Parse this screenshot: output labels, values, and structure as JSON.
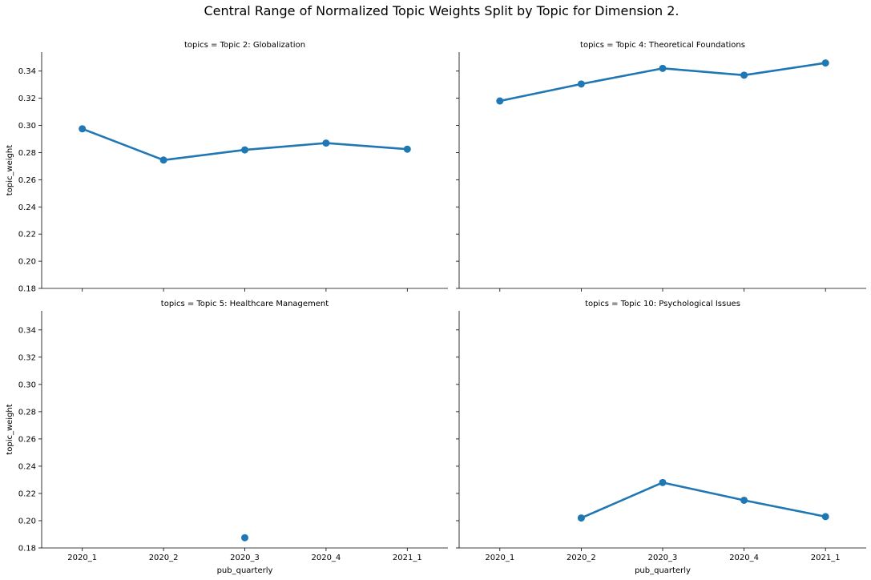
{
  "chart_data": {
    "type": "line",
    "title": "Central Range of Normalized Topic Weights Split by Topic for Dimension 2.",
    "xlabel": "pub_quarterly",
    "ylabel": "topic_weight",
    "categories": [
      "2020_1",
      "2020_2",
      "2020_3",
      "2020_4",
      "2021_1"
    ],
    "ylim": [
      0.18,
      0.354
    ],
    "yticks": [
      "0.18",
      "0.20",
      "0.22",
      "0.24",
      "0.26",
      "0.28",
      "0.30",
      "0.32",
      "0.34"
    ],
    "grid": false,
    "color": "#1f77b4",
    "facets": [
      {
        "title": "topics = Topic 2: Globalization",
        "values": [
          0.2975,
          0.2745,
          0.282,
          0.287,
          0.2825
        ]
      },
      {
        "title": "topics = Topic 4: Theoretical Foundations",
        "values": [
          0.318,
          0.3305,
          0.342,
          0.337,
          0.346
        ]
      },
      {
        "title": "topics = Topic 5: Healthcare Management",
        "values": [
          null,
          null,
          0.1875,
          null,
          null
        ]
      },
      {
        "title": "topics = Topic 10: Psychological Issues",
        "values": [
          null,
          0.202,
          0.228,
          0.215,
          0.203
        ]
      }
    ]
  }
}
